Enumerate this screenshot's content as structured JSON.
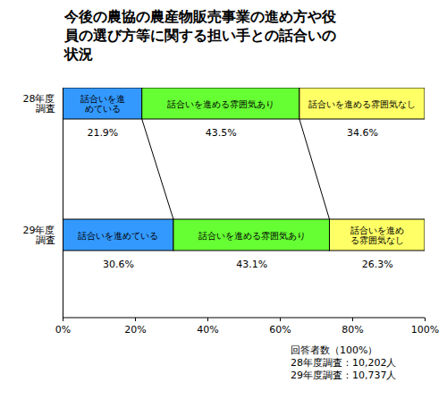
{
  "chart_data": {
    "type": "bar",
    "orientation": "horizontal",
    "stacked": true,
    "title": "今後の農協の農産物販売事業の進め方や役員の選び方等に関する担い手との話合いの状況",
    "categories": [
      "28年度\n調査",
      "29年度\n調査"
    ],
    "series": [
      {
        "name": "話合いを進めている",
        "color": "#3399ff",
        "values": [
          21.9,
          30.6
        ],
        "value_labels": [
          "21.9%",
          "30.6%"
        ]
      },
      {
        "name": "話合いを進める雰囲気あり",
        "color": "#66ff33",
        "values": [
          43.5,
          43.1
        ],
        "value_labels": [
          "43.5%",
          "43.1%"
        ]
      },
      {
        "name": "話合いを進める雰囲気なし",
        "color": "#ffff66",
        "values": [
          34.6,
          26.3
        ],
        "value_labels": [
          "34.6%",
          "26.3%"
        ]
      }
    ],
    "xlim": [
      0,
      100
    ],
    "xticks": [
      {
        "value": 0,
        "label": "0%"
      },
      {
        "value": 20,
        "label": "20%"
      },
      {
        "value": 40,
        "label": "40%"
      },
      {
        "value": 60,
        "label": "60%"
      },
      {
        "value": 80,
        "label": "80%"
      },
      {
        "value": 100,
        "label": "100%"
      }
    ],
    "grid": false,
    "data_labels": true,
    "annotations": [
      "回答者数（100%）",
      "28年度調査：10,202人",
      "29年度調査：10,737人"
    ]
  }
}
